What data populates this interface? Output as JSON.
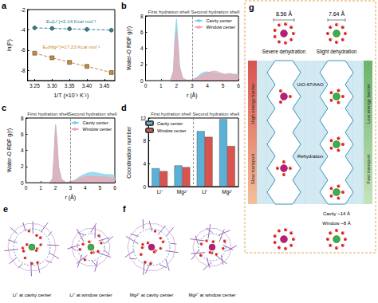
{
  "chart_data": [
    {
      "panel_label": "a",
      "type": "line",
      "x_label": "1/T (×10⁻³ K⁻¹)",
      "y_label": "ln(P)",
      "xlim": [
        3.23,
        3.48
      ],
      "xticks": [
        3.25,
        {
          "value": 3.3,
          "label": "3.30"
        },
        3.35,
        {
          "value": 3.4,
          "label": "3.40"
        },
        3.45
      ],
      "ylim": [
        -9,
        -2
      ],
      "yticks": [
        -8,
        -6,
        -4,
        -2
      ],
      "grid": false,
      "x": [
        3.25,
        3.3,
        3.35,
        3.4,
        3.47
      ],
      "series": [
        {
          "color": "#2f7f8c",
          "marker": "circle",
          "line_style": "dashed",
          "values": [
            -3.8,
            -3.85,
            -3.9,
            -3.95,
            -4.03
          ]
        },
        {
          "color": "#c98a36",
          "marker": "rect",
          "line_style": "dashed",
          "values": [
            -6.3,
            -6.75,
            -7.2,
            -7.6,
            -8.2
          ]
        }
      ],
      "annotations": [
        "Eₐ(Li⁺)=2.14 Kcal mol⁻¹",
        "Eₐ(Mg²⁺)=17.23 Kcal mol⁻¹"
      ]
    },
    {
      "panel_label": "b",
      "type": "area",
      "x_label": "r (Å)",
      "y_label": "Water-O RDF g(r)",
      "xlim": [
        0,
        6
      ],
      "xticks": [
        0,
        1,
        2,
        3,
        4,
        5,
        6
      ],
      "ylim": [
        0,
        8
      ],
      "yticks": [
        0,
        2,
        4,
        6,
        8
      ],
      "grid": false,
      "legend": "top-right",
      "shell_boundary": 3,
      "annotations": [
        "First hydration shell",
        "Second hydration shell"
      ],
      "x": [
        0,
        1,
        1.6,
        1.8,
        1.9,
        2.0,
        2.1,
        2.2,
        2.4,
        2.7,
        3.0,
        3.3,
        3.6,
        3.9,
        4.2,
        4.5,
        4.8,
        5.1,
        5.4,
        5.7,
        6.0
      ],
      "series": [
        {
          "name": "Cavity center",
          "color": "#7dd0ea",
          "values": [
            0,
            0,
            0,
            1.2,
            5.5,
            7.6,
            4.8,
            1.8,
            0.3,
            0.05,
            0.1,
            0.4,
            0.9,
            1.1,
            1.0,
            0.9,
            0.8,
            0.7,
            0.8,
            0.7,
            0.7
          ]
        },
        {
          "name": "Window center",
          "color": "#f2a5b0",
          "values": [
            0,
            0,
            0,
            1.0,
            4.6,
            6.2,
            4.0,
            1.5,
            0.3,
            0.05,
            0.1,
            0.3,
            0.6,
            0.9,
            1.1,
            1.2,
            1.0,
            0.8,
            0.9,
            0.8,
            0.8
          ]
        }
      ]
    },
    {
      "panel_label": "c",
      "type": "area",
      "x_label": "r (Å)",
      "y_label": "Water-O RDF g(r)",
      "xlim": [
        0,
        6
      ],
      "xticks": [
        0,
        1,
        2,
        3,
        4,
        5,
        6
      ],
      "ylim": [
        0,
        8
      ],
      "yticks": [
        0,
        2,
        4,
        6,
        8
      ],
      "grid": false,
      "legend": "top-right",
      "shell_boundary": 3,
      "annotations": [
        "First hydration shell",
        "Second hydration shell"
      ],
      "x": [
        0,
        1,
        1.6,
        1.8,
        1.9,
        2.0,
        2.1,
        2.2,
        2.4,
        2.7,
        3.0,
        3.3,
        3.6,
        3.9,
        4.2,
        4.5,
        4.8,
        5.1,
        5.4,
        5.7,
        6.0
      ],
      "series": [
        {
          "name": "Cavity center",
          "color": "#7dd0ea",
          "values": [
            0,
            0,
            0,
            0.5,
            3.5,
            7.2,
            5.2,
            2.0,
            0.4,
            0.05,
            0.1,
            0.3,
            0.7,
            1.0,
            1.2,
            1.3,
            1.2,
            1.1,
            1.0,
            1.0,
            0.9
          ]
        },
        {
          "name": "Window center",
          "color": "#f2a5b0",
          "values": [
            0,
            0,
            0,
            0.5,
            3.4,
            7.1,
            5.1,
            2.0,
            0.4,
            0.05,
            0.1,
            0.3,
            0.5,
            0.7,
            0.8,
            0.8,
            0.8,
            0.7,
            0.7,
            0.6,
            0.6
          ]
        }
      ]
    },
    {
      "panel_label": "d",
      "type": "bar",
      "y_label": "Coordination number",
      "categories": [
        "Li⁺",
        "Mg²⁺",
        "Li⁺",
        "Mg²⁺"
      ],
      "group_labels": [
        "First hydration shell",
        "Second hydration shell"
      ],
      "ylim": [
        0,
        12
      ],
      "yticks": [
        0,
        4,
        8,
        12
      ],
      "grid": false,
      "legend": "top-left",
      "series": [
        {
          "name": "Cavity center",
          "color": "#5ab0d6",
          "values": [
            3.2,
            3.7,
            9.7,
            11.8
          ]
        },
        {
          "name": "Window center",
          "color": "#d9534f",
          "values": [
            2.7,
            3.4,
            8.7,
            7.1
          ]
        }
      ]
    }
  ],
  "diagram": {
    "e": {
      "label": "e",
      "captions": [
        "Li⁺ at cavity center",
        "Li⁺ at window center"
      ]
    },
    "f": {
      "label": "f",
      "captions": [
        "Mg²⁺ at cavity center",
        "Mg²⁺ at window center"
      ]
    },
    "g": {
      "label": "g",
      "ion_sizes": [
        "8.56 Å",
        "7.64 Å"
      ],
      "dehydration": [
        "Severe dehydration",
        "Slight dehydration"
      ],
      "membrane": "UiO-67/AAO",
      "rehydration": "Rehydration",
      "left_bar": [
        "High energy barrier",
        "Slow transport"
      ],
      "right_bar": [
        "Low energy barrier",
        "Fast transport"
      ],
      "pore_sizes": [
        "Cavity ~14 Å",
        "Window ~8 Å"
      ]
    }
  }
}
